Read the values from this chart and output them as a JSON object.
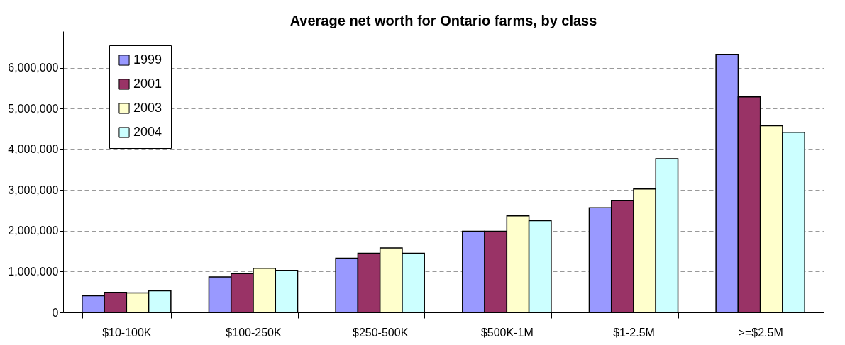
{
  "chart_data": {
    "type": "bar",
    "title": "Average net worth for Ontario farms, by class",
    "categories": [
      "$10-100K",
      "$100-250K",
      "$250-500K",
      "$500K-1M",
      "$1-2.5M",
      ">=$2.5M"
    ],
    "series": [
      {
        "name": "1999",
        "color": "#9999ff",
        "values": [
          410000,
          870000,
          1330000,
          1990000,
          2570000,
          6330000
        ]
      },
      {
        "name": "2001",
        "color": "#993366",
        "values": [
          490000,
          950000,
          1450000,
          1990000,
          2740000,
          5290000
        ]
      },
      {
        "name": "2003",
        "color": "#ffffcc",
        "values": [
          480000,
          1080000,
          1580000,
          2370000,
          3030000,
          4580000
        ]
      },
      {
        "name": "2004",
        "color": "#ccffff",
        "values": [
          530000,
          1030000,
          1450000,
          2250000,
          3770000,
          4420000
        ]
      }
    ],
    "ylim": [
      0,
      6900000
    ],
    "yticks": [
      0,
      {
        "value": 1000000,
        "label": "1,000,000"
      },
      {
        "value": 2000000,
        "label": "2,000,000"
      },
      {
        "value": 3000000,
        "label": "3,000,000"
      },
      {
        "value": 4000000,
        "label": "4,000,000"
      },
      {
        "value": 5000000,
        "label": "5,000,000"
      },
      {
        "value": 6000000,
        "label": "6,000,000"
      }
    ],
    "grid": "y",
    "legend": "top left"
  }
}
